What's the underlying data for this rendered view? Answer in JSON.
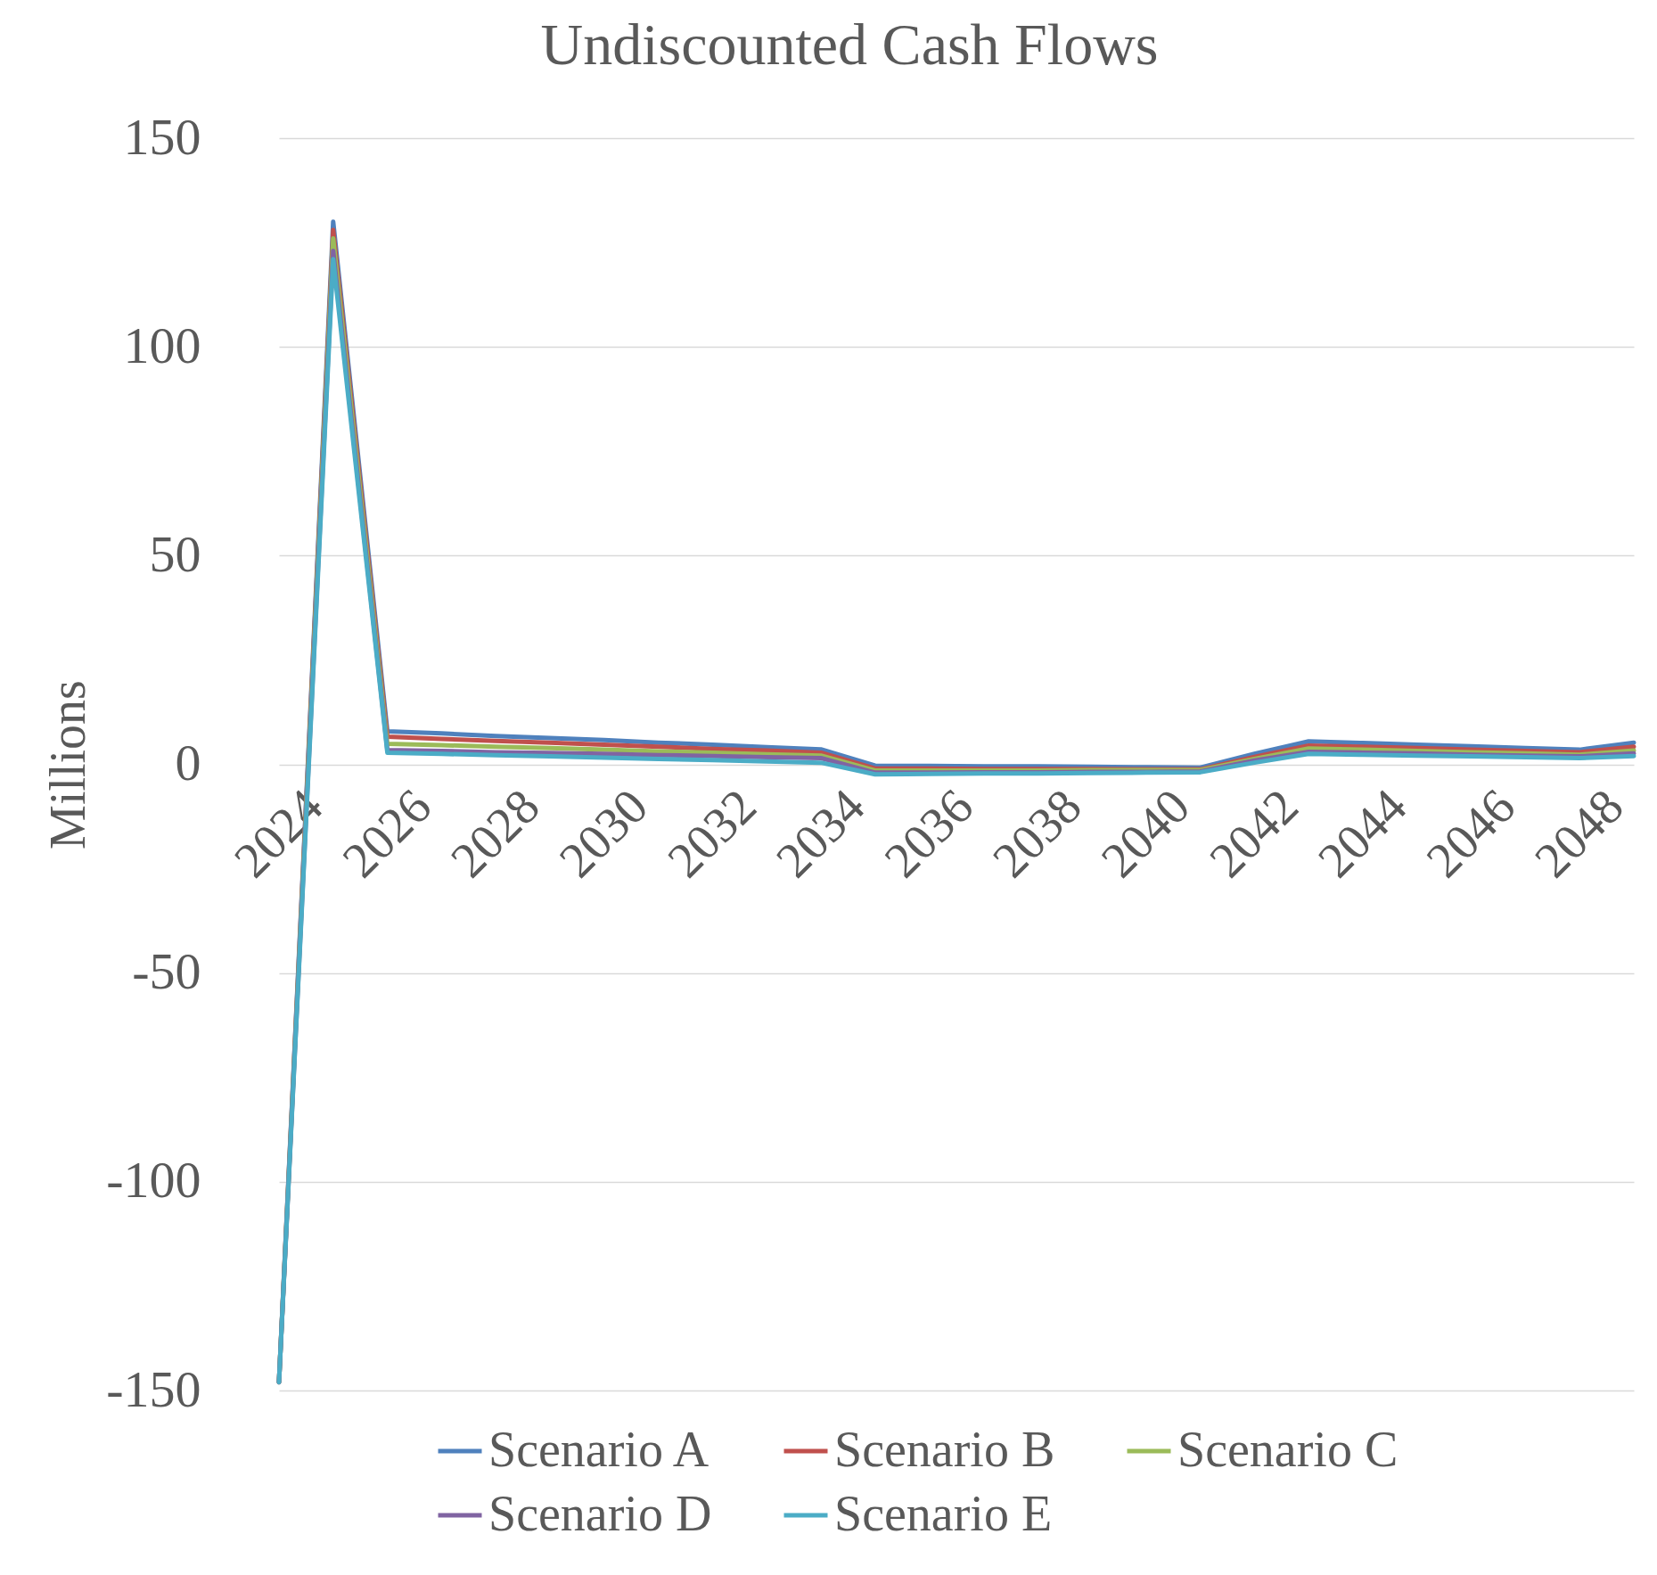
{
  "chart_data": {
    "type": "line",
    "title": "Undiscounted Cash Flows",
    "ylabel": "Millions",
    "x": [
      2024,
      2025,
      2026,
      2027,
      2028,
      2029,
      2030,
      2031,
      2032,
      2033,
      2034,
      2035,
      2036,
      2037,
      2038,
      2039,
      2040,
      2041,
      2042,
      2043,
      2044,
      2045,
      2046,
      2047,
      2048,
      2049
    ],
    "xlim": [
      2024,
      2049
    ],
    "xticks": [
      2024,
      2026,
      2028,
      2030,
      2032,
      2034,
      2036,
      2038,
      2040,
      2042,
      2044,
      2046,
      2048
    ],
    "ylim": [
      -150,
      150
    ],
    "yticks": [
      -150,
      -100,
      -50,
      0,
      50,
      100,
      150
    ],
    "grid": "y",
    "legend": "bottom",
    "series": [
      {
        "name": "Scenario A",
        "color": "#4f81bd",
        "values": [
          -148,
          130,
          7.9,
          7.4,
          6.8,
          6.3,
          5.8,
          5.2,
          4.7,
          4.1,
          3.6,
          -0.3,
          -0.4,
          -0.5,
          -0.5,
          -0.6,
          -0.7,
          -0.8,
          2.5,
          5.5,
          5.1,
          4.7,
          4.3,
          3.9,
          3.5,
          5.2
        ]
      },
      {
        "name": "Scenario B",
        "color": "#c0504d",
        "values": [
          -148,
          128,
          6.6,
          6.1,
          5.6,
          5.2,
          4.7,
          4.2,
          3.7,
          3.3,
          2.8,
          -1.0,
          -1.0,
          -1.1,
          -1.1,
          -1.1,
          -1.2,
          -1.2,
          1.8,
          4.5,
          4.2,
          3.9,
          3.5,
          3.2,
          2.9,
          4.2
        ]
      },
      {
        "name": "Scenario C",
        "color": "#9bbb59",
        "values": [
          -148,
          126,
          4.9,
          4.6,
          4.2,
          3.9,
          3.5,
          3.1,
          2.8,
          2.4,
          2.1,
          -1.5,
          -1.5,
          -1.5,
          -1.5,
          -1.4,
          -1.4,
          -1.4,
          1.3,
          3.8,
          3.5,
          3.2,
          2.9,
          2.6,
          2.3,
          3.3
        ]
      },
      {
        "name": "Scenario D",
        "color": "#8064a2",
        "values": [
          -148,
          123,
          3.4,
          3.2,
          2.9,
          2.7,
          2.5,
          2.2,
          2.0,
          1.7,
          1.5,
          -2.0,
          -2.0,
          -1.9,
          -1.9,
          -1.8,
          -1.8,
          -1.7,
          0.9,
          3.0,
          2.8,
          2.6,
          2.3,
          2.1,
          1.9,
          2.6
        ]
      },
      {
        "name": "Scenario E",
        "color": "#4bacc6",
        "values": [
          -148,
          121,
          2.8,
          2.5,
          2.2,
          1.9,
          1.6,
          1.3,
          1.0,
          0.7,
          0.4,
          -2.4,
          -2.3,
          -2.2,
          -2.2,
          -2.1,
          -2.0,
          -1.9,
          0.4,
          2.5,
          2.3,
          2.1,
          1.9,
          1.7,
          1.5,
          2.0
        ]
      }
    ]
  }
}
